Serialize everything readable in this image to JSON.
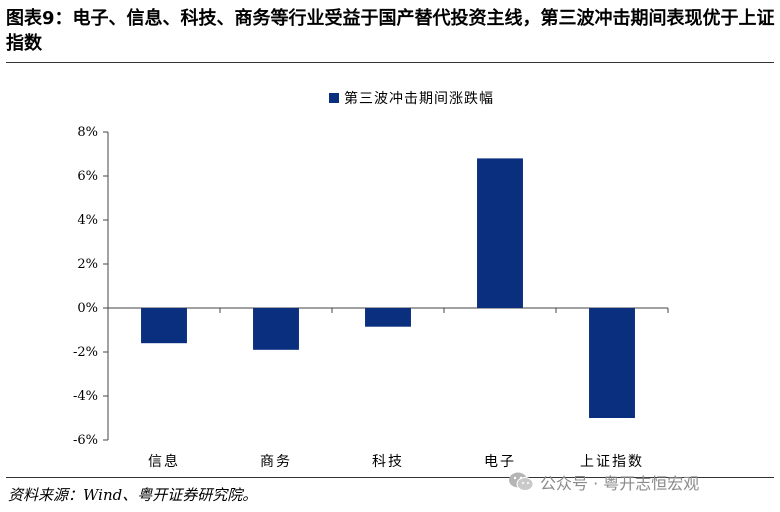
{
  "title": "图表9：电子、信息、科技、商务等行业受益于国产替代投资主线，第三波冲击期间表现优于上证指数",
  "source": "资料来源：Wind、粤开证券研究院。",
  "watermark": {
    "text": "公众号 · 粤开志恒宏观",
    "icon": "wechat-icon",
    "color": "#8a8a8a"
  },
  "chart_data": {
    "type": "bar",
    "title": "",
    "legend": [
      "第三波冲击期间涨跌幅"
    ],
    "legend_position": "top-center",
    "categories": [
      "信息",
      "商务",
      "科技",
      "电子",
      "上证指数"
    ],
    "series": [
      {
        "name": "第三波冲击期间涨跌幅",
        "values": [
          -1.6,
          -1.9,
          -0.85,
          6.8,
          -5.0
        ],
        "color": "#0a2f7f"
      }
    ],
    "xlabel": "",
    "ylabel": "",
    "ylim": [
      -6,
      8
    ],
    "yticks": [
      8,
      6,
      4,
      2,
      0,
      -2,
      -4,
      -6
    ],
    "tick_suffix": "%",
    "grid": false
  }
}
